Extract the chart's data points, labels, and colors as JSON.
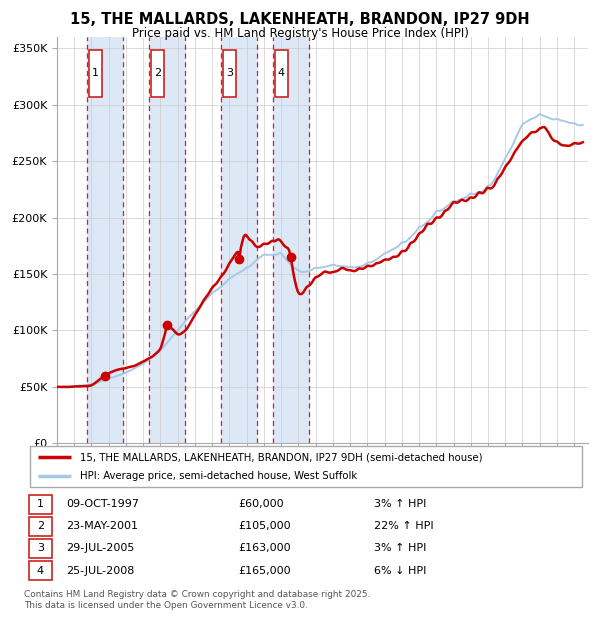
{
  "title": "15, THE MALLARDS, LAKENHEATH, BRANDON, IP27 9DH",
  "subtitle": "Price paid vs. HM Land Registry's House Price Index (HPI)",
  "legend_line1": "15, THE MALLARDS, LAKENHEATH, BRANDON, IP27 9DH (semi-detached house)",
  "legend_line2": "HPI: Average price, semi-detached house, West Suffolk",
  "footnote": "Contains HM Land Registry data © Crown copyright and database right 2025.\nThis data is licensed under the Open Government Licence v3.0.",
  "transactions": [
    {
      "num": 1,
      "date": "09-OCT-1997",
      "price": 60000,
      "pct": "3%",
      "dir": "↑",
      "x_year": 1997.77
    },
    {
      "num": 2,
      "date": "23-MAY-2001",
      "price": 105000,
      "pct": "22%",
      "dir": "↑",
      "x_year": 2001.39
    },
    {
      "num": 3,
      "date": "29-JUL-2005",
      "price": 163000,
      "pct": "3%",
      "dir": "↑",
      "x_year": 2005.57
    },
    {
      "num": 4,
      "date": "25-JUL-2008",
      "price": 165000,
      "pct": "6%",
      "dir": "↓",
      "x_year": 2008.57
    }
  ],
  "hpi_color": "#a8c8e8",
  "price_color": "#cc0000",
  "shade_color": "#dce8f5",
  "dashed_color": "#cc0000",
  "ylim": [
    0,
    360000
  ],
  "xlim": [
    1995.0,
    2025.8
  ],
  "background_color": "#ffffff",
  "yticks": [
    0,
    50000,
    100000,
    150000,
    200000,
    250000,
    300000,
    350000
  ]
}
